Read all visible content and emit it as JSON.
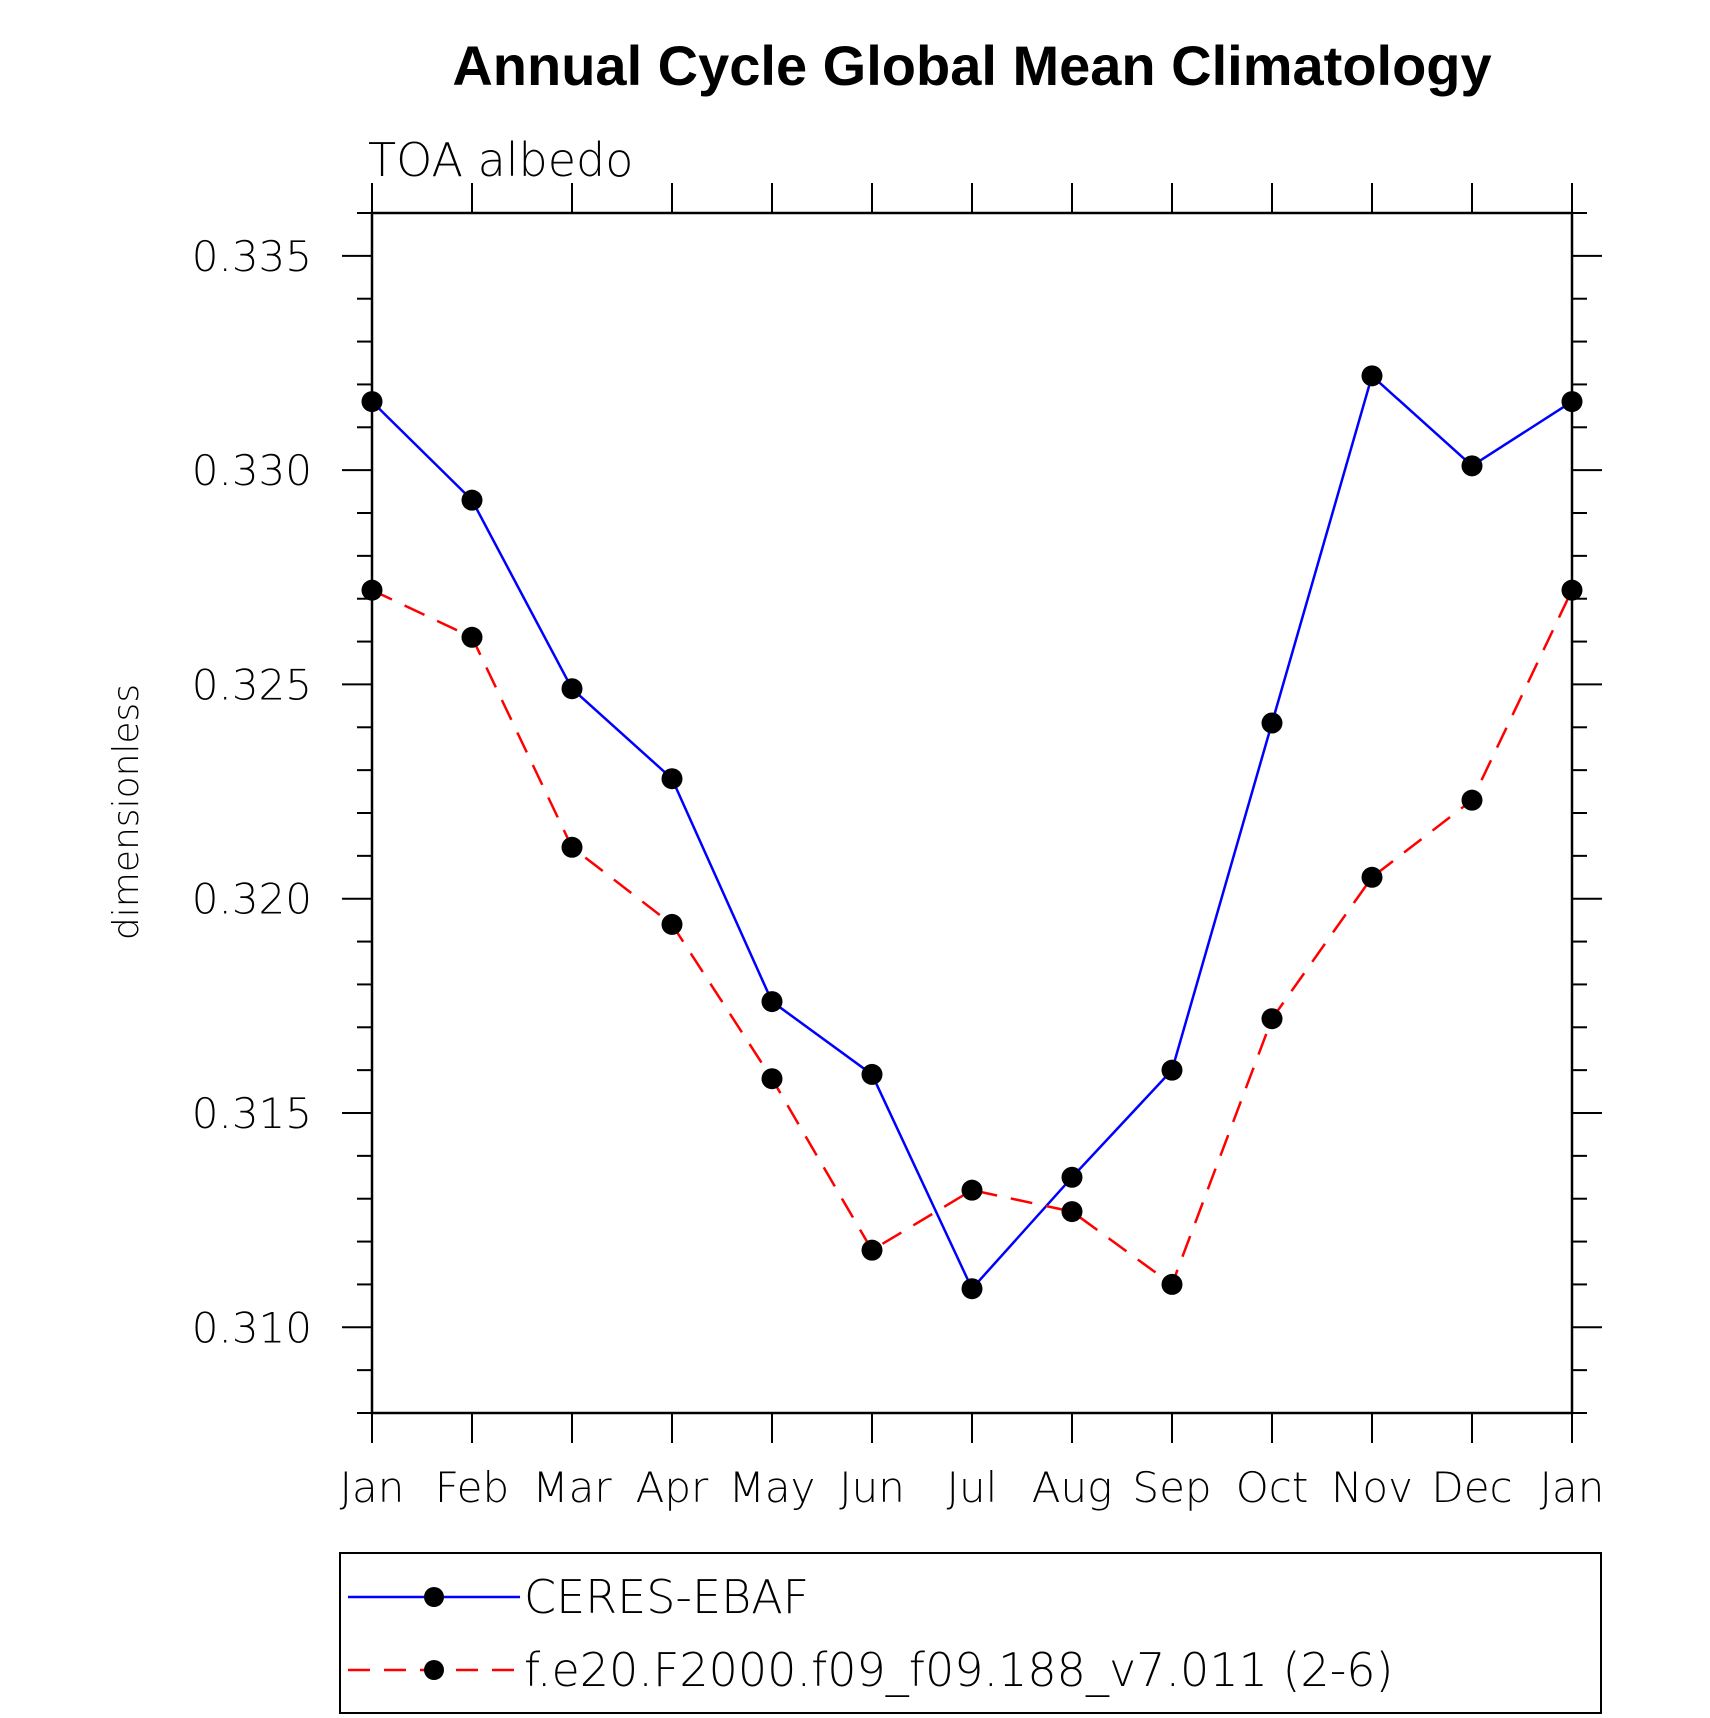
{
  "chart_data": {
    "type": "line",
    "title": "Annual Cycle Global Mean Climatology",
    "subtitle": "TOA albedo",
    "ylabel": "dimensionless",
    "xlabel": "",
    "ylim": [
      0.308,
      0.336
    ],
    "yticks": [
      0.31,
      0.315,
      0.32,
      0.325,
      0.33,
      0.335
    ],
    "ytick_labels": [
      "0.310",
      "0.315",
      "0.320",
      "0.325",
      "0.330",
      "0.335"
    ],
    "categories": [
      "Jan",
      "Feb",
      "Mar",
      "Apr",
      "May",
      "Jun",
      "Jul",
      "Aug",
      "Sep",
      "Oct",
      "Nov",
      "Dec",
      "Jan"
    ],
    "legend_position": "bottom",
    "series": [
      {
        "name": "CERES-EBAF",
        "color": "#0000ff",
        "dash": "solid",
        "values": [
          0.3316,
          0.3293,
          0.3249,
          0.3228,
          0.3176,
          0.3159,
          0.3109,
          0.3135,
          0.316,
          0.3241,
          0.3322,
          0.3301,
          0.3316
        ]
      },
      {
        "name": "f.e20.F2000.f09_f09.188_v7.011 (2-6)",
        "color": "#ff0000",
        "dash": "dashed",
        "values": [
          0.3272,
          0.3261,
          0.3212,
          0.3194,
          0.3158,
          0.3118,
          0.3132,
          0.3127,
          0.311,
          0.3172,
          0.3205,
          0.3223,
          0.3272
        ]
      }
    ]
  }
}
